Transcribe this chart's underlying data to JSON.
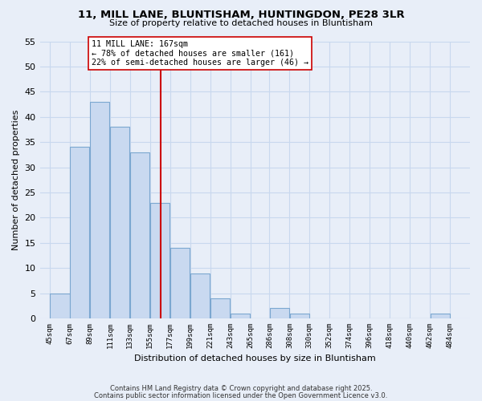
{
  "title_line1": "11, MILL LANE, BLUNTISHAM, HUNTINGDON, PE28 3LR",
  "title_line2": "Size of property relative to detached houses in Bluntisham",
  "xlabel": "Distribution of detached houses by size in Bluntisham",
  "ylabel": "Number of detached properties",
  "bar_left_edges": [
    45,
    67,
    89,
    111,
    133,
    155,
    177,
    199,
    221,
    243,
    265,
    286,
    308,
    330,
    352,
    374,
    396,
    418,
    440,
    462
  ],
  "bar_widths": [
    22,
    22,
    22,
    22,
    22,
    22,
    22,
    22,
    22,
    22,
    21,
    22,
    22,
    22,
    22,
    22,
    22,
    22,
    22,
    22
  ],
  "bar_heights": [
    5,
    34,
    43,
    38,
    33,
    23,
    14,
    9,
    4,
    1,
    0,
    2,
    1,
    0,
    0,
    0,
    0,
    0,
    0,
    1
  ],
  "bar_color": "#c9d9f0",
  "bar_edge_color": "#7ba7d0",
  "x_tick_labels": [
    "45sqm",
    "67sqm",
    "89sqm",
    "111sqm",
    "133sqm",
    "155sqm",
    "177sqm",
    "199sqm",
    "221sqm",
    "243sqm",
    "265sqm",
    "286sqm",
    "308sqm",
    "330sqm",
    "352sqm",
    "374sqm",
    "396sqm",
    "418sqm",
    "440sqm",
    "462sqm",
    "484sqm"
  ],
  "x_tick_positions": [
    45,
    67,
    89,
    111,
    133,
    155,
    177,
    199,
    221,
    243,
    265,
    286,
    308,
    330,
    352,
    374,
    396,
    418,
    440,
    462,
    484
  ],
  "yticks": [
    0,
    5,
    10,
    15,
    20,
    25,
    30,
    35,
    40,
    45,
    50,
    55
  ],
  "ylim": [
    0,
    55
  ],
  "xlim": [
    34,
    506
  ],
  "vline_x": 167,
  "vline_color": "#cc0000",
  "annotation_title": "11 MILL LANE: 167sqm",
  "annotation_line1": "← 78% of detached houses are smaller (161)",
  "annotation_line2": "22% of semi-detached houses are larger (46) →",
  "grid_color": "#c8d8ee",
  "bg_color": "#e8eef8",
  "plot_bg_color": "#e8eef8",
  "footnote1": "Contains HM Land Registry data © Crown copyright and database right 2025.",
  "footnote2": "Contains public sector information licensed under the Open Government Licence v3.0."
}
